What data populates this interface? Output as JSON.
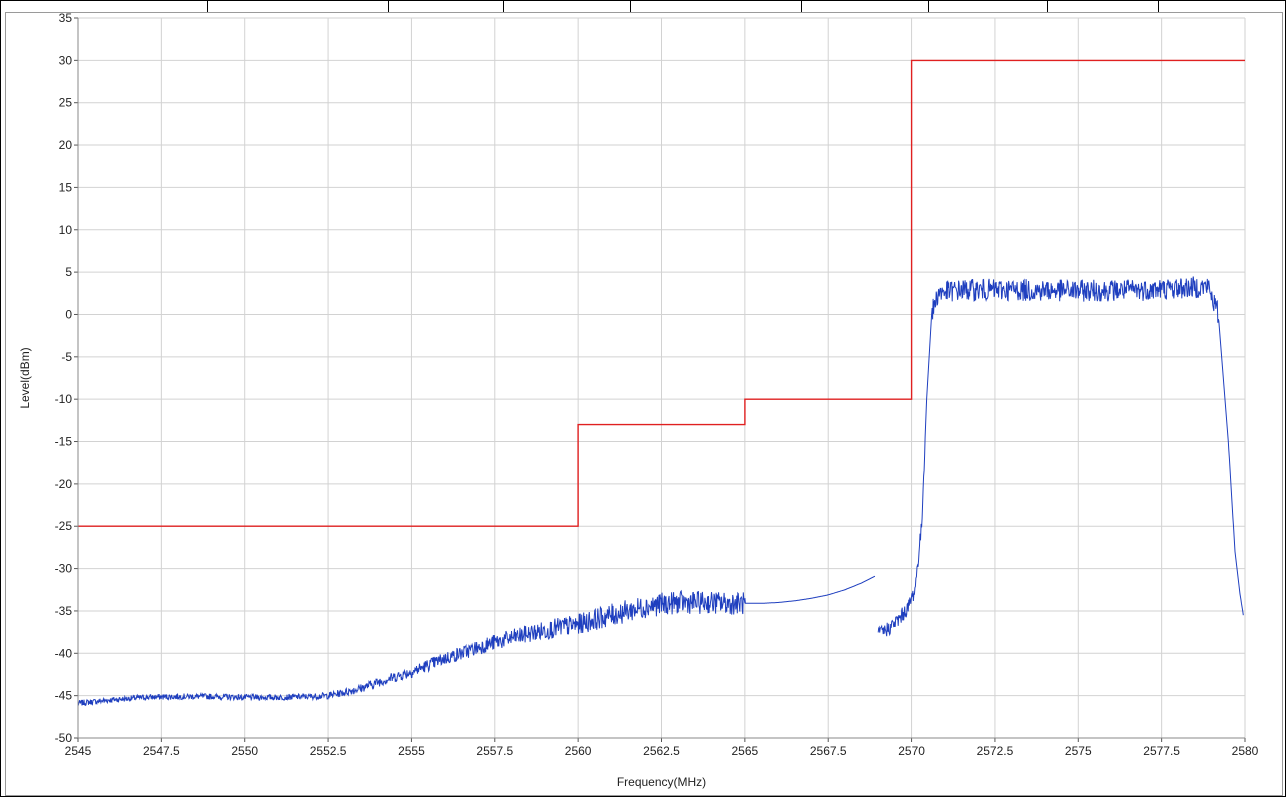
{
  "chart_data": {
    "type": "line",
    "title": "",
    "xlabel": "Frequency(MHz)",
    "ylabel": "Level(dBm)",
    "xlim": [
      2545,
      2580
    ],
    "ylim": [
      -50,
      35
    ],
    "x_ticks": [
      "2545",
      "2547.5",
      "2550",
      "2552.5",
      "2555",
      "2557.5",
      "2560",
      "2562.5",
      "2565",
      "2567.5",
      "2570",
      "2572.5",
      "2575",
      "2577.5",
      "2580"
    ],
    "y_ticks": [
      "35",
      "30",
      "25",
      "20",
      "15",
      "10",
      "5",
      "0",
      "-5",
      "-10",
      "-15",
      "-20",
      "-25",
      "-30",
      "-35",
      "-40",
      "-45",
      "-50"
    ],
    "grid": true,
    "colors": {
      "limit": "#e02020",
      "measured": "#1f3fbf",
      "grid": "#d2d2d2"
    },
    "series": [
      {
        "points": [
          [
            2545,
            -25
          ],
          [
            2560,
            -25
          ],
          [
            2560,
            -13
          ],
          [
            2565,
            -13
          ],
          [
            2565,
            -10
          ],
          [
            2570,
            -10
          ],
          [
            2570,
            30
          ],
          [
            2580,
            30
          ]
        ]
      },
      {
        "segments": [
          [
            [
              2545,
              -45.9
            ],
            [
              2546,
              -45.5
            ],
            [
              2547,
              -45.2
            ],
            [
              2548,
              -45.1
            ],
            [
              2549,
              -45.1
            ],
            [
              2550,
              -45.2
            ],
            [
              2551,
              -45.2
            ],
            [
              2552,
              -45.1
            ],
            [
              2552.5,
              -45
            ],
            [
              2553,
              -44.6
            ],
            [
              2553.5,
              -44.1
            ],
            [
              2554,
              -43.4
            ],
            [
              2554.5,
              -42.8
            ],
            [
              2555,
              -42.2
            ],
            [
              2555.5,
              -41.4
            ],
            [
              2556,
              -40.6
            ],
            [
              2556.5,
              -40
            ],
            [
              2557,
              -39.3
            ],
            [
              2557.5,
              -38.7
            ],
            [
              2558,
              -38.2
            ],
            [
              2558.5,
              -37.7
            ],
            [
              2559,
              -37.3
            ],
            [
              2559.5,
              -36.9
            ],
            [
              2560,
              -36.6
            ],
            [
              2560.5,
              -36
            ],
            [
              2561,
              -35.5
            ],
            [
              2561.5,
              -35
            ],
            [
              2562,
              -34.5
            ],
            [
              2562.5,
              -34.2
            ],
            [
              2563,
              -34
            ],
            [
              2563.5,
              -34
            ],
            [
              2564,
              -34
            ],
            [
              2564.5,
              -34.1
            ],
            [
              2565,
              -34.1
            ]
          ],
          [
            [
              2565,
              -34.1
            ],
            [
              2565.5,
              -34.1
            ],
            [
              2566,
              -34
            ],
            [
              2566.5,
              -33.8
            ],
            [
              2567,
              -33.5
            ],
            [
              2567.5,
              -33.1
            ],
            [
              2568,
              -32.5
            ],
            [
              2568.5,
              -31.7
            ],
            [
              2568.9,
              -30.9
            ]
          ],
          [
            [
              2569,
              -37.8
            ],
            [
              2569.3,
              -37.1
            ],
            [
              2569.6,
              -36.1
            ],
            [
              2569.9,
              -34.6
            ],
            [
              2570.1,
              -32.5
            ],
            [
              2570.3,
              -25
            ],
            [
              2570.45,
              -10
            ],
            [
              2570.6,
              0
            ],
            [
              2570.8,
              2.6
            ],
            [
              2571.5,
              2.9
            ],
            [
              2573,
              2.9
            ],
            [
              2575,
              2.8
            ],
            [
              2577,
              2.9
            ],
            [
              2578,
              3.1
            ],
            [
              2578.9,
              3.3
            ],
            [
              2579.2,
              0
            ],
            [
              2579.5,
              -15
            ],
            [
              2579.7,
              -28
            ],
            [
              2579.85,
              -33
            ],
            [
              2579.95,
              -35.5
            ]
          ]
        ],
        "noisy_ranges": [
          [
            2545,
            2565
          ],
          [
            2569,
            2570.4
          ],
          [
            2570.6,
            2579.2
          ]
        ]
      }
    ]
  }
}
